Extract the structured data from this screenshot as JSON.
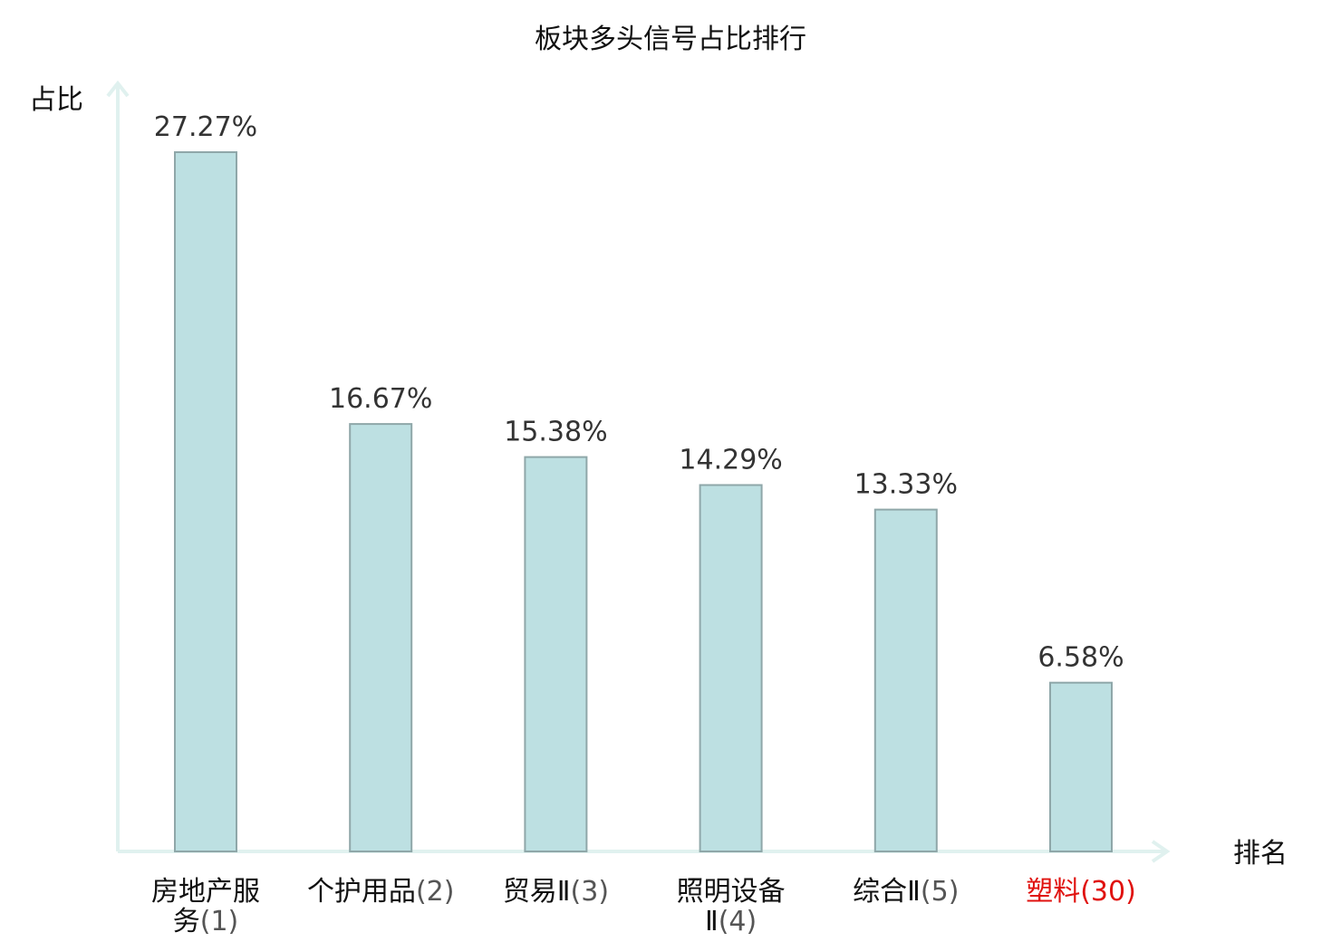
{
  "chart_data": {
    "type": "bar",
    "title": "板块多头信号占比排行",
    "ylabel": "占比",
    "xlabel": "排名",
    "ylim": [
      0,
      27.27
    ],
    "categories": [
      {
        "name": "房地产服务",
        "rank": "(1)",
        "highlight": false
      },
      {
        "name": "个护用品",
        "rank": "(2)",
        "highlight": false
      },
      {
        "name": "贸易Ⅱ",
        "rank": "(3)",
        "highlight": false
      },
      {
        "name": "照明设备Ⅱ",
        "rank": "(4)",
        "highlight": false
      },
      {
        "name": "综合Ⅱ",
        "rank": "(5)",
        "highlight": false
      },
      {
        "name": "塑料",
        "rank": "(30)",
        "highlight": true
      }
    ],
    "values": [
      27.27,
      16.67,
      15.38,
      14.29,
      13.33,
      6.58
    ],
    "value_labels": [
      "27.27%",
      "16.67%",
      "15.38%",
      "14.29%",
      "13.33%",
      "6.58%"
    ],
    "colors": {
      "bar_fill": "#bde0e2",
      "bar_stroke": "#8fa7a9",
      "axis": "#e0f1ef",
      "label_text": "#111111",
      "rank_text": "#555555",
      "highlight": "#e0120f",
      "value_text": "#333333"
    }
  }
}
